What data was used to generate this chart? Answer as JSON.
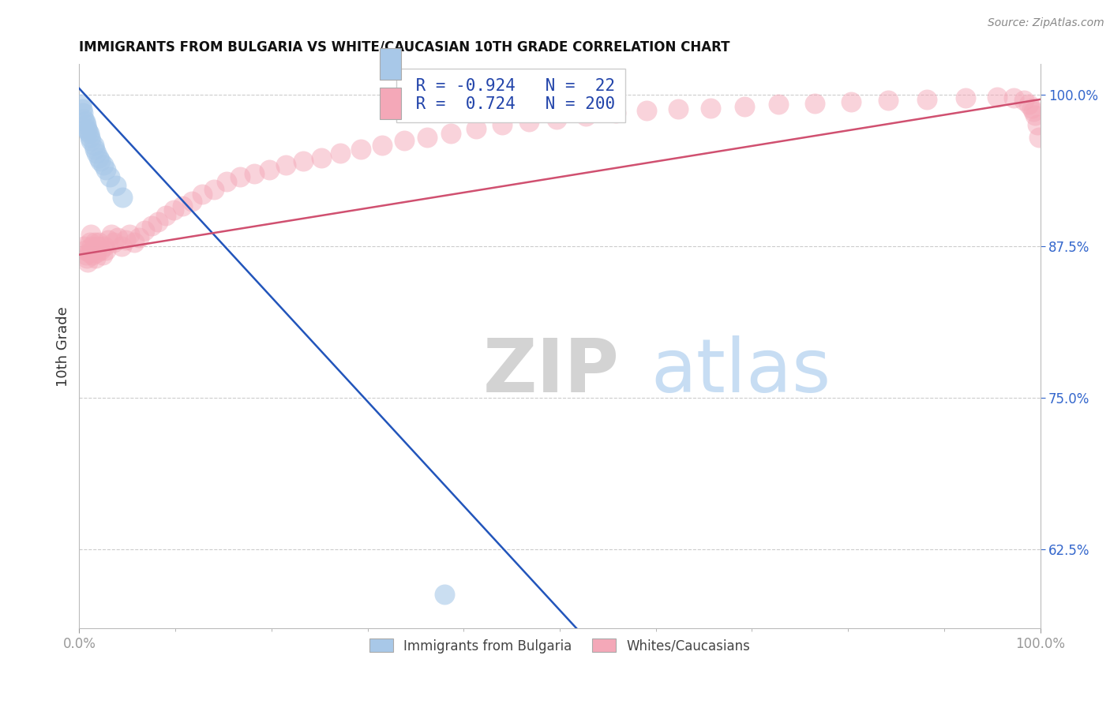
{
  "title": "IMMIGRANTS FROM BULGARIA VS WHITE/CAUCASIAN 10TH GRADE CORRELATION CHART",
  "source": "Source: ZipAtlas.com",
  "ylabel": "10th Grade",
  "r_blue": -0.924,
  "n_blue": 22,
  "r_pink": 0.724,
  "n_pink": 200,
  "blue_color": "#A8C8E8",
  "pink_color": "#F4A8B8",
  "blue_line_color": "#2255BB",
  "pink_line_color": "#D05070",
  "watermark_zip": "ZIP",
  "watermark_atlas": "atlas",
  "legend_labels": [
    "Immigrants from Bulgaria",
    "Whites/Caucasians"
  ],
  "ytick_labels": [
    "62.5%",
    "75.0%",
    "87.5%",
    "100.0%"
  ],
  "ytick_values": [
    0.625,
    0.75,
    0.875,
    1.0
  ],
  "ymin": 0.56,
  "ymax": 1.025,
  "xmin": 0.0,
  "xmax": 1.0,
  "blue_line_x0": 0.0,
  "blue_line_y0": 1.005,
  "blue_line_x1": 0.5,
  "blue_line_y1": 0.575,
  "pink_line_x0": 0.0,
  "pink_line_y0": 0.868,
  "pink_line_x1": 1.0,
  "pink_line_y1": 0.996,
  "blue_scatter_x": [
    0.002,
    0.003,
    0.004,
    0.005,
    0.006,
    0.007,
    0.008,
    0.009,
    0.01,
    0.011,
    0.012,
    0.015,
    0.016,
    0.018,
    0.02,
    0.022,
    0.025,
    0.028,
    0.032,
    0.038,
    0.045,
    0.38
  ],
  "blue_scatter_y": [
    0.992,
    0.988,
    0.985,
    0.98,
    0.978,
    0.975,
    0.972,
    0.97,
    0.968,
    0.965,
    0.962,
    0.958,
    0.955,
    0.952,
    0.948,
    0.945,
    0.942,
    0.938,
    0.932,
    0.925,
    0.915,
    0.588
  ],
  "pink_scatter_x": [
    0.005,
    0.006,
    0.007,
    0.008,
    0.009,
    0.01,
    0.011,
    0.012,
    0.013,
    0.014,
    0.015,
    0.016,
    0.017,
    0.018,
    0.019,
    0.02,
    0.022,
    0.024,
    0.026,
    0.028,
    0.03,
    0.033,
    0.036,
    0.04,
    0.044,
    0.048,
    0.052,
    0.057,
    0.062,
    0.068,
    0.075,
    0.082,
    0.09,
    0.098,
    0.107,
    0.117,
    0.128,
    0.14,
    0.153,
    0.167,
    0.182,
    0.198,
    0.215,
    0.233,
    0.252,
    0.272,
    0.293,
    0.315,
    0.338,
    0.362,
    0.387,
    0.413,
    0.44,
    0.468,
    0.497,
    0.527,
    0.558,
    0.59,
    0.623,
    0.657,
    0.692,
    0.728,
    0.765,
    0.803,
    0.842,
    0.882,
    0.922,
    0.955,
    0.972,
    0.983,
    0.988,
    0.991,
    0.993,
    0.995,
    0.997,
    0.999
  ],
  "pink_scatter_y": [
    0.875,
    0.872,
    0.868,
    0.865,
    0.862,
    0.87,
    0.878,
    0.885,
    0.875,
    0.868,
    0.872,
    0.878,
    0.865,
    0.87,
    0.875,
    0.878,
    0.872,
    0.868,
    0.875,
    0.872,
    0.88,
    0.885,
    0.878,
    0.882,
    0.875,
    0.88,
    0.885,
    0.878,
    0.882,
    0.888,
    0.892,
    0.895,
    0.9,
    0.905,
    0.908,
    0.912,
    0.918,
    0.922,
    0.928,
    0.932,
    0.935,
    0.938,
    0.942,
    0.945,
    0.948,
    0.952,
    0.955,
    0.958,
    0.962,
    0.965,
    0.968,
    0.972,
    0.975,
    0.978,
    0.98,
    0.982,
    0.985,
    0.987,
    0.988,
    0.989,
    0.99,
    0.992,
    0.993,
    0.994,
    0.995,
    0.996,
    0.997,
    0.998,
    0.997,
    0.995,
    0.992,
    0.989,
    0.986,
    0.983,
    0.975,
    0.965
  ]
}
